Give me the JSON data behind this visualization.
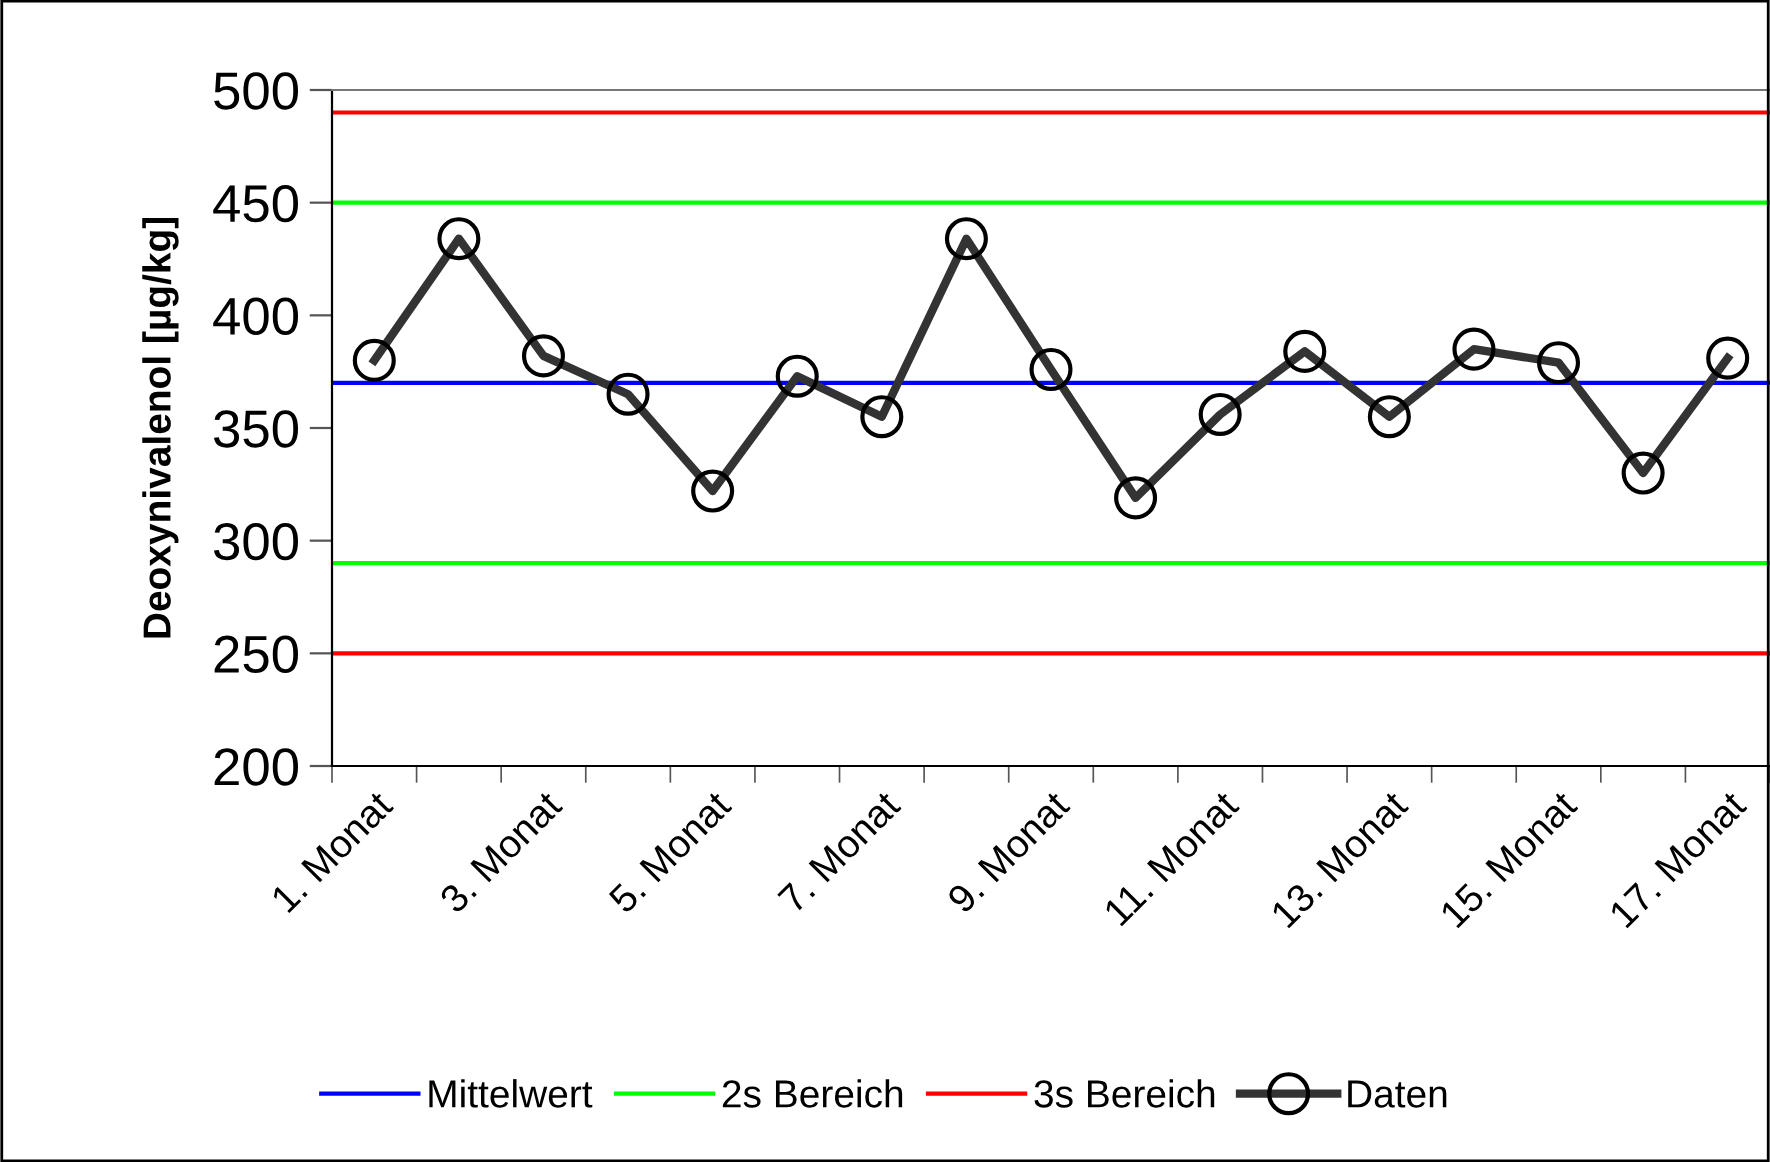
{
  "chart_data": {
    "type": "line",
    "ylabel": "Deoxynivalenol [µg/kg]",
    "categories": [
      "1. Monat",
      null,
      "3. Monat",
      null,
      "5. Monat",
      null,
      "7. Monat",
      null,
      "9. Monat",
      null,
      "11. Monat",
      null,
      "13. Monat",
      null,
      "15. Monat",
      null,
      "17. Monat"
    ],
    "series": [
      {
        "name": "Daten",
        "color": "#333333",
        "values": [
          380,
          434,
          382,
          365,
          322,
          373,
          355,
          434,
          376,
          319,
          356,
          384,
          355,
          385,
          379,
          330,
          381
        ]
      }
    ],
    "ylim": [
      200,
      500
    ],
    "yticks": [
      200,
      250,
      300,
      350,
      400,
      450,
      500
    ],
    "ref_lines": [
      {
        "axis": "y",
        "value": 370,
        "label": "Mittelwert",
        "color": "#0000ff"
      },
      {
        "axis": "y",
        "value": 450,
        "label": "2s Bereich",
        "color": "#00ff00"
      },
      {
        "axis": "y",
        "value": 290,
        "color": "#00ff00"
      },
      {
        "axis": "y",
        "value": 490,
        "label": "3s Bereich",
        "color": "#ff0000"
      },
      {
        "axis": "y",
        "value": 250,
        "color": "#ff0000"
      }
    ],
    "marker": "circle",
    "line_style": "solid",
    "grid": false,
    "legend": "bottom"
  }
}
